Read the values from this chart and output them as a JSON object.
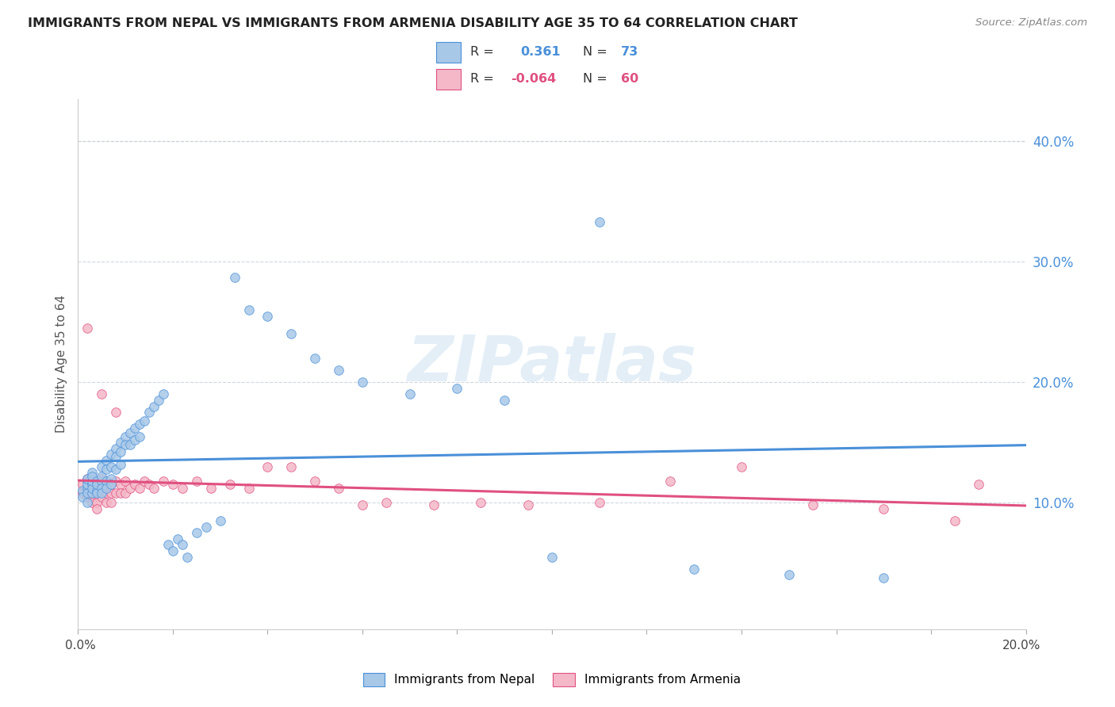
{
  "title": "IMMIGRANTS FROM NEPAL VS IMMIGRANTS FROM ARMENIA DISABILITY AGE 35 TO 64 CORRELATION CHART",
  "source": "Source: ZipAtlas.com",
  "ylabel": "Disability Age 35 to 64",
  "ytick_values": [
    0.1,
    0.2,
    0.3,
    0.4
  ],
  "xlim": [
    0.0,
    0.2
  ],
  "ylim": [
    -0.005,
    0.435
  ],
  "plot_ylim_low": 0.0,
  "nepal_color": "#a8c8e8",
  "nepal_color_line": "#4a90d9",
  "armenia_color": "#f4b8c8",
  "armenia_color_line": "#e05080",
  "nepal_R": 0.361,
  "nepal_N": 73,
  "armenia_R": -0.064,
  "armenia_N": 60,
  "legend_label_nepal": "Immigrants from Nepal",
  "legend_label_armenia": "Immigrants from Armenia",
  "grid_color": "#d0d8e0",
  "top_grid_color": "#c8d0d8",
  "nepal_x": [
    0.001,
    0.001,
    0.002,
    0.002,
    0.002,
    0.002,
    0.002,
    0.002,
    0.003,
    0.003,
    0.003,
    0.003,
    0.003,
    0.003,
    0.004,
    0.004,
    0.004,
    0.004,
    0.005,
    0.005,
    0.005,
    0.005,
    0.005,
    0.006,
    0.006,
    0.006,
    0.006,
    0.007,
    0.007,
    0.007,
    0.007,
    0.008,
    0.008,
    0.008,
    0.009,
    0.009,
    0.009,
    0.01,
    0.01,
    0.011,
    0.011,
    0.012,
    0.012,
    0.013,
    0.013,
    0.014,
    0.015,
    0.016,
    0.017,
    0.018,
    0.019,
    0.02,
    0.021,
    0.022,
    0.023,
    0.025,
    0.027,
    0.03,
    0.033,
    0.036,
    0.04,
    0.045,
    0.05,
    0.055,
    0.06,
    0.07,
    0.08,
    0.09,
    0.1,
    0.11,
    0.13,
    0.15,
    0.17
  ],
  "nepal_y": [
    0.11,
    0.105,
    0.118,
    0.112,
    0.108,
    0.115,
    0.12,
    0.1,
    0.125,
    0.115,
    0.108,
    0.112,
    0.118,
    0.122,
    0.11,
    0.118,
    0.108,
    0.115,
    0.13,
    0.118,
    0.112,
    0.108,
    0.122,
    0.135,
    0.128,
    0.118,
    0.112,
    0.14,
    0.13,
    0.12,
    0.115,
    0.145,
    0.138,
    0.128,
    0.15,
    0.142,
    0.132,
    0.155,
    0.148,
    0.158,
    0.148,
    0.162,
    0.152,
    0.165,
    0.155,
    0.168,
    0.175,
    0.18,
    0.185,
    0.19,
    0.065,
    0.06,
    0.07,
    0.065,
    0.055,
    0.075,
    0.08,
    0.085,
    0.287,
    0.26,
    0.255,
    0.24,
    0.22,
    0.21,
    0.2,
    0.19,
    0.195,
    0.185,
    0.055,
    0.333,
    0.045,
    0.04,
    0.038
  ],
  "armenia_x": [
    0.001,
    0.001,
    0.002,
    0.002,
    0.002,
    0.003,
    0.003,
    0.003,
    0.003,
    0.004,
    0.004,
    0.004,
    0.004,
    0.005,
    0.005,
    0.005,
    0.006,
    0.006,
    0.006,
    0.007,
    0.007,
    0.007,
    0.008,
    0.008,
    0.009,
    0.009,
    0.01,
    0.01,
    0.011,
    0.012,
    0.013,
    0.014,
    0.015,
    0.016,
    0.018,
    0.02,
    0.022,
    0.025,
    0.028,
    0.032,
    0.036,
    0.04,
    0.045,
    0.05,
    0.055,
    0.06,
    0.065,
    0.075,
    0.085,
    0.095,
    0.11,
    0.125,
    0.14,
    0.155,
    0.17,
    0.185,
    0.19,
    0.002,
    0.005,
    0.008
  ],
  "armenia_y": [
    0.115,
    0.108,
    0.12,
    0.112,
    0.105,
    0.118,
    0.11,
    0.105,
    0.1,
    0.115,
    0.108,
    0.1,
    0.095,
    0.12,
    0.112,
    0.105,
    0.118,
    0.108,
    0.1,
    0.115,
    0.108,
    0.1,
    0.118,
    0.108,
    0.115,
    0.108,
    0.118,
    0.108,
    0.112,
    0.115,
    0.112,
    0.118,
    0.115,
    0.112,
    0.118,
    0.115,
    0.112,
    0.118,
    0.112,
    0.115,
    0.112,
    0.13,
    0.13,
    0.118,
    0.112,
    0.098,
    0.1,
    0.098,
    0.1,
    0.098,
    0.1,
    0.118,
    0.13,
    0.098,
    0.095,
    0.085,
    0.115,
    0.245,
    0.19,
    0.175
  ]
}
